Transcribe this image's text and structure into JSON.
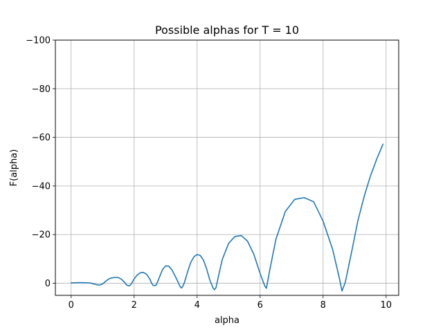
{
  "chart_data": {
    "type": "line",
    "title": "Possible alphas for T = 10",
    "xlabel": "alpha",
    "ylabel": "F(alpha)",
    "xlim": [
      -0.5,
      10.4
    ],
    "ylim": [
      5,
      -100
    ],
    "y_axis_inverted": true,
    "grid": true,
    "line_color": "#1f77b4",
    "xticks": [
      0,
      2,
      4,
      6,
      8,
      10
    ],
    "xtick_labels": [
      "0",
      "2",
      "4",
      "6",
      "8",
      "10"
    ],
    "yticks": [
      0,
      -20,
      -40,
      -60,
      -80,
      -100
    ],
    "ytick_labels": [
      "0",
      "−20",
      "−40",
      "−60",
      "−80",
      "−100"
    ],
    "series": [
      {
        "x": [
          0.0,
          0.2,
          0.4,
          0.6,
          0.8,
          0.9,
          1.0,
          1.1,
          1.2,
          1.3,
          1.4,
          1.5,
          1.6,
          1.7,
          1.75,
          1.8,
          1.85,
          1.9,
          1.95,
          2.0,
          2.1,
          2.2,
          2.3,
          2.4,
          2.5,
          2.55,
          2.6,
          2.65,
          2.7,
          2.8,
          2.9,
          3.0,
          3.1,
          3.2,
          3.3,
          3.4,
          3.45,
          3.5,
          3.55,
          3.6,
          3.7,
          3.8,
          3.9,
          4.0,
          4.1,
          4.2,
          4.3,
          4.4,
          4.5,
          4.55,
          4.6,
          4.7,
          4.8,
          5.0,
          5.2,
          5.4,
          5.6,
          5.8,
          6.0,
          6.1,
          6.15,
          6.2,
          6.3,
          6.5,
          6.8,
          7.1,
          7.4,
          7.7,
          8.0,
          8.3,
          8.5,
          8.6,
          8.7,
          8.9,
          9.1,
          9.3,
          9.5,
          9.7,
          9.9
        ],
        "y": [
          -0.1,
          -0.2,
          -0.2,
          -0.1,
          0.6,
          0.8,
          0.3,
          -0.8,
          -1.8,
          -2.2,
          -2.4,
          -2.3,
          -1.6,
          -0.3,
          0.6,
          1.0,
          1.1,
          0.5,
          -0.6,
          -1.8,
          -3.4,
          -4.3,
          -4.4,
          -3.6,
          -1.7,
          -0.1,
          0.9,
          1.0,
          0.8,
          -2.3,
          -5.6,
          -7.1,
          -7.0,
          -5.5,
          -3.0,
          -0.3,
          1.2,
          2.0,
          1.2,
          -0.4,
          -4.8,
          -8.6,
          -10.9,
          -11.8,
          -11.4,
          -9.5,
          -6.0,
          -1.4,
          1.8,
          2.7,
          1.8,
          -4.2,
          -9.8,
          -16.4,
          -19.2,
          -19.6,
          -17.3,
          -11.9,
          -4.0,
          -0.5,
          1.2,
          2.1,
          -5.0,
          -18.0,
          -29.5,
          -34.5,
          -35.2,
          -33.5,
          -25.5,
          -14.0,
          -3.0,
          3.2,
          -0.2,
          -12.5,
          -25.5,
          -35.5,
          -44.0,
          -51.0,
          -57.2
        ]
      }
    ]
  }
}
